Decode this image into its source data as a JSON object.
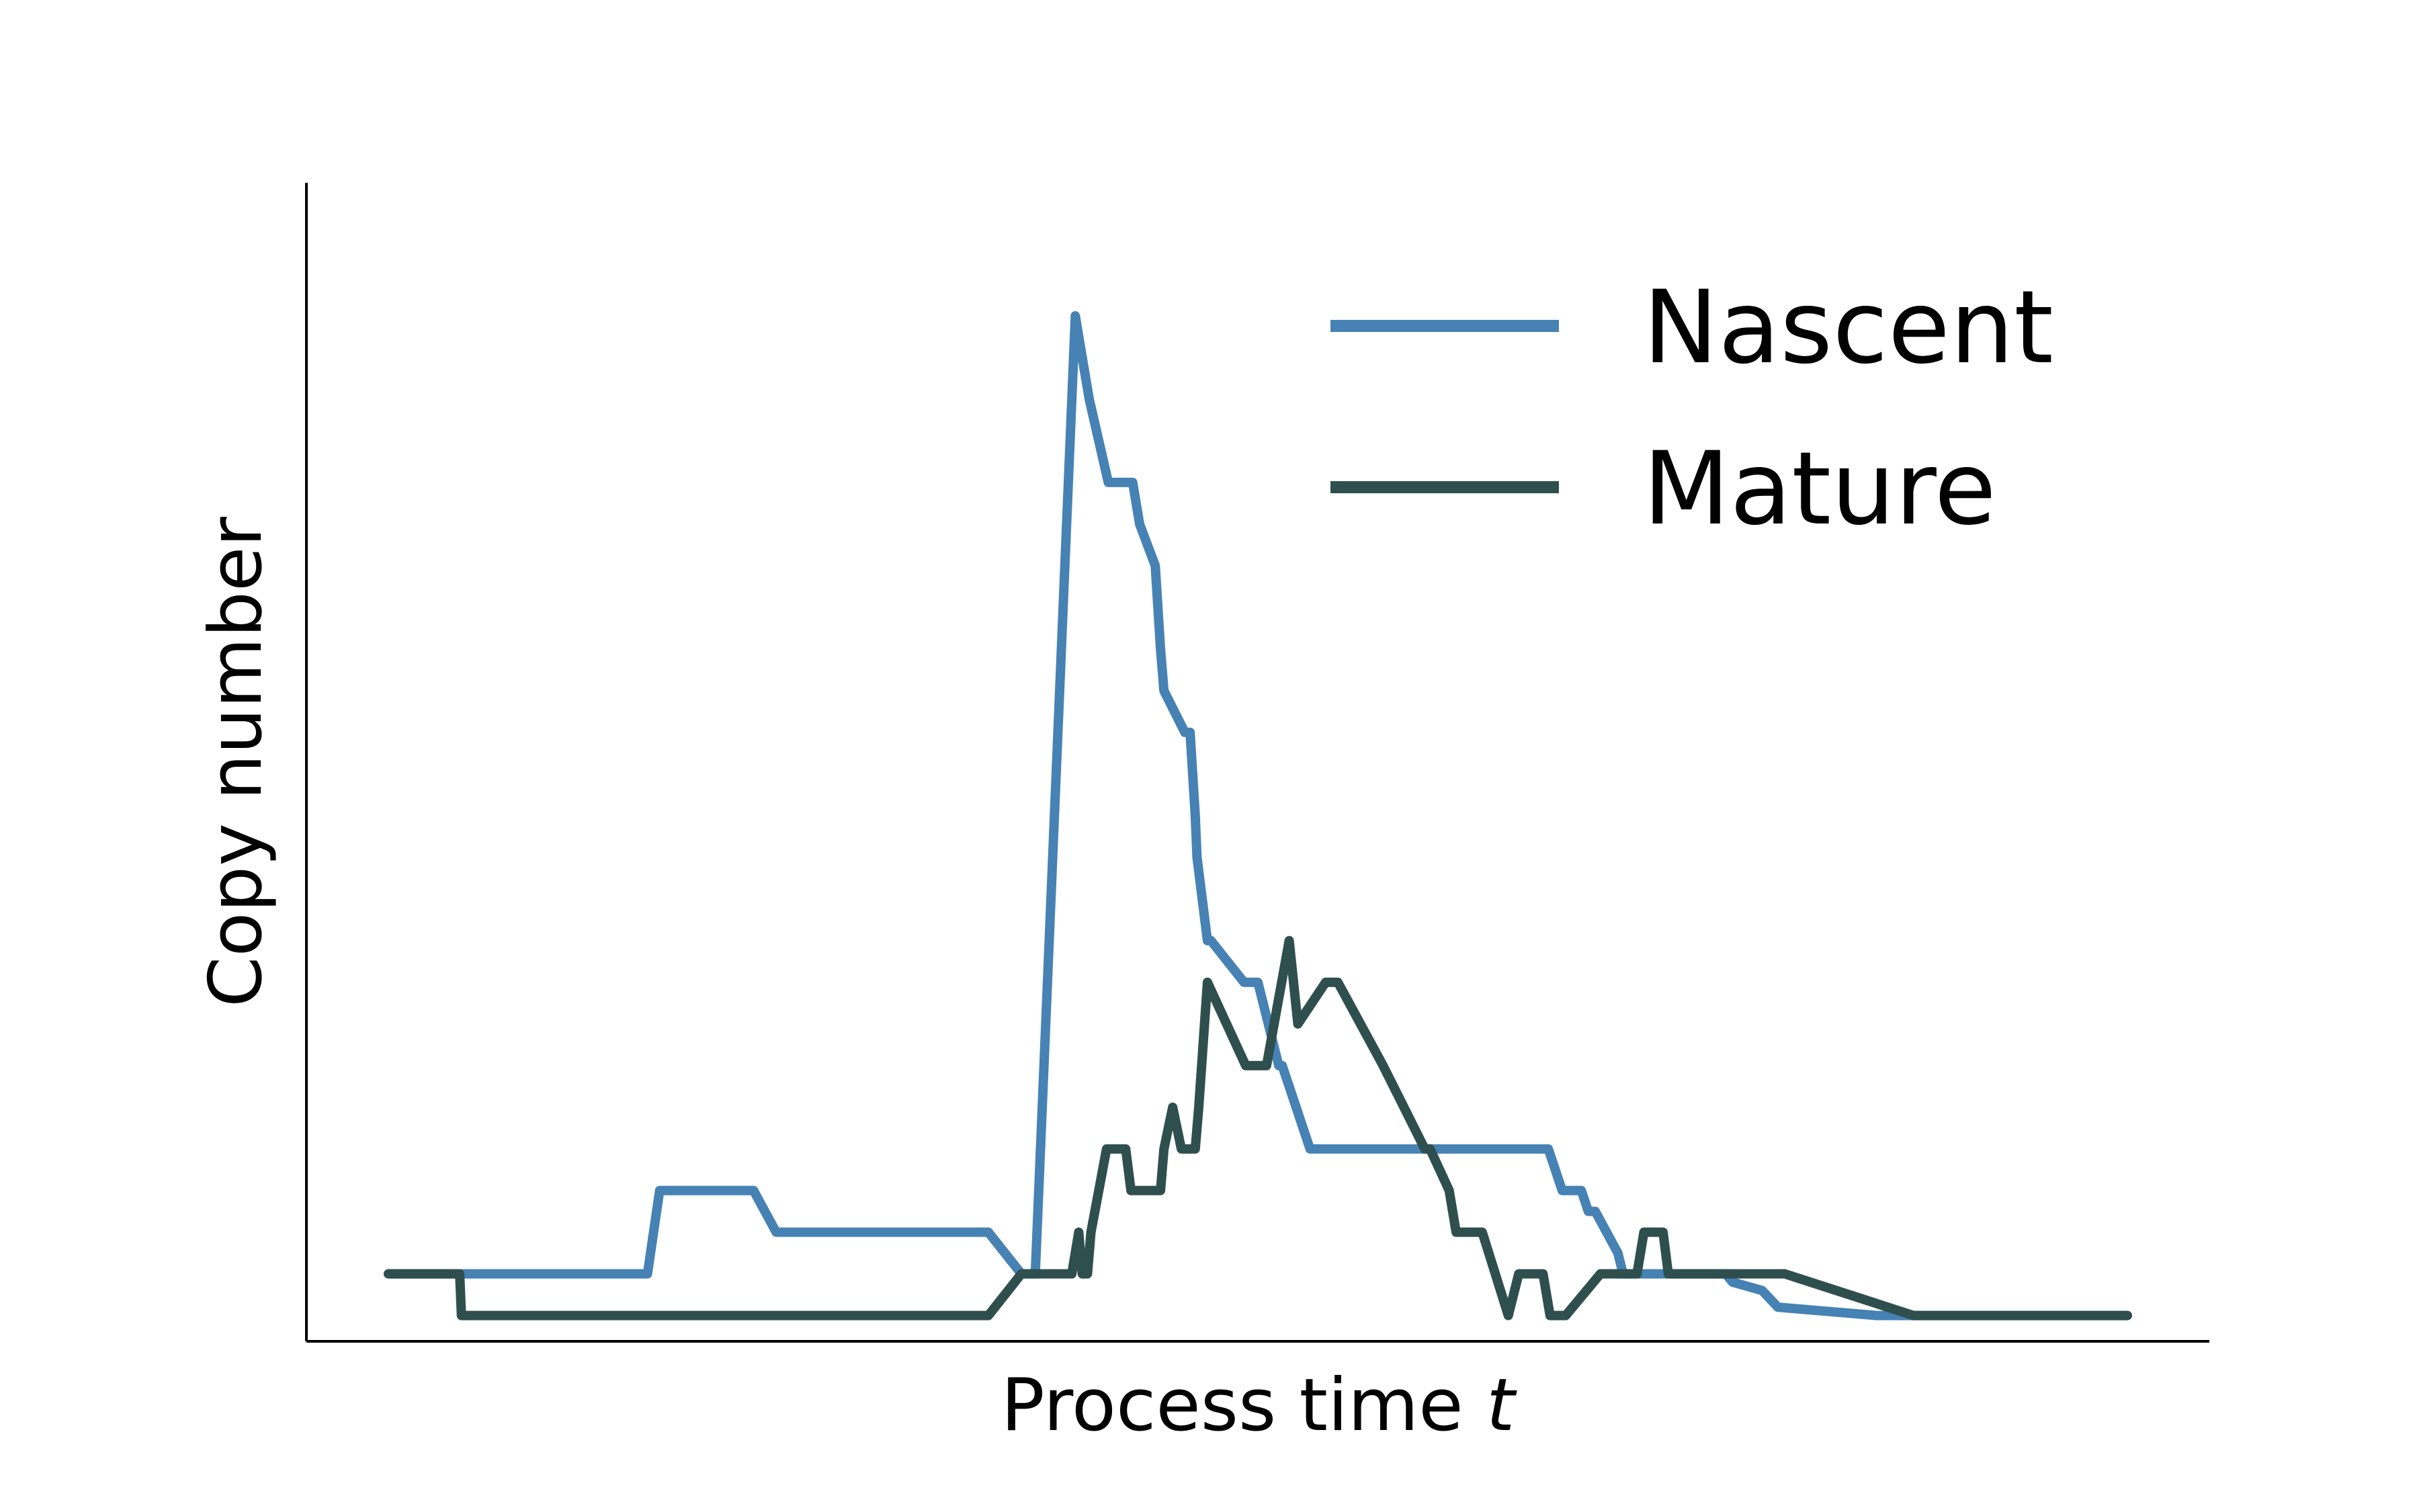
{
  "chart_data": {
    "type": "line",
    "xlabel": "Process time",
    "xlabel_var": "t",
    "ylabel": "Copy number",
    "xlim": [
      0,
      100
    ],
    "ylim": [
      -1.2,
      25
    ],
    "grid": false,
    "legend_position": "top-right",
    "series": [
      {
        "name": "Nascent",
        "color": "#4682b4",
        "x": [
          0,
          14.9,
          15.6,
          21,
          22.3,
          34.5,
          36.4,
          37.2,
          39.5,
          39.9,
          40.3,
          41.4,
          42.8,
          43.2,
          44.1,
          44.4,
          44.6,
          45.8,
          46.1,
          46.4,
          46.5,
          47.1,
          47.3,
          49.2,
          50.0,
          51.2,
          51.4,
          53.0,
          55.6,
          66.7,
          67.5,
          68.6,
          69.0,
          69.4,
          70.7,
          71.0,
          76.9,
          77.3,
          79.0,
          79.9,
          85.6,
          100
        ],
        "y": [
          0,
          0,
          2,
          2,
          1,
          1,
          0,
          0,
          23,
          22,
          21,
          19,
          19,
          18,
          17,
          15,
          14,
          13,
          13,
          11,
          10,
          8,
          8,
          7,
          7,
          5,
          5,
          3,
          3,
          3,
          2,
          2,
          1.5,
          1.5,
          0.5,
          0,
          0,
          -0.2,
          -0.4,
          -0.8,
          -1,
          -1
        ],
        "y_note": "",
        "values": [
          0,
          0,
          2,
          2,
          1,
          1,
          0,
          0,
          23,
          22,
          21,
          19,
          19,
          18,
          17,
          15,
          14,
          13,
          13,
          11,
          10,
          8,
          8,
          7,
          7,
          5,
          5,
          3,
          3,
          3,
          2,
          2,
          1.5,
          1.5,
          0.5,
          0,
          0,
          -0.2,
          -0.4,
          -0.8,
          -1,
          -1
        ]
      },
      {
        "name": "Mature",
        "color": "#2f4f4f",
        "x": [
          0,
          4.1,
          4.2,
          34.5,
          36.4,
          39.3,
          39.7,
          39.9,
          40.2,
          40.4,
          41.3,
          42.4,
          42.7,
          44.4,
          44.6,
          45.1,
          45.6,
          46.4,
          46.6,
          47.1,
          49.3,
          50.5,
          51.8,
          52.3,
          53.9,
          54.6,
          57.2,
          59.6,
          59.9,
          61.0,
          61.4,
          62.9,
          64.4,
          65.0,
          66.4,
          66.8,
          67.7,
          69.7,
          70.1,
          71.8,
          72.2,
          73.3,
          73.6,
          75.7,
          76.0,
          80.3,
          87.7,
          100
        ],
        "y": [
          0,
          0,
          -1,
          -1,
          0,
          0,
          1,
          0,
          0,
          1,
          3,
          3,
          2,
          2,
          3,
          4,
          3,
          3,
          4,
          7,
          5,
          5,
          8,
          6,
          7,
          7,
          5,
          3,
          3,
          2,
          1,
          1,
          -1,
          0,
          0,
          -1,
          -1,
          0,
          0,
          0,
          1,
          1,
          0,
          0,
          0,
          0,
          -1,
          -1
        ],
        "values": [
          0,
          0,
          -1,
          -1,
          0,
          0,
          1,
          0,
          0,
          1,
          3,
          3,
          2,
          2,
          3,
          4,
          3,
          3,
          4,
          7,
          5,
          5,
          8,
          6,
          7,
          7,
          5,
          3,
          3,
          2,
          1,
          1,
          -1,
          0,
          0,
          -1,
          -1,
          0,
          0,
          0,
          1,
          1,
          0,
          0,
          0,
          0,
          -1,
          -1
        ]
      }
    ]
  }
}
